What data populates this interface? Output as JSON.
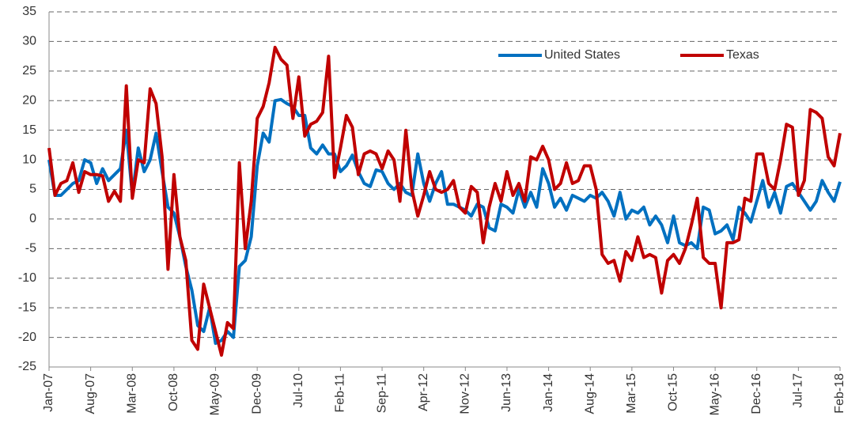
{
  "chart_data": {
    "type": "line",
    "categories": [
      "Jan-07",
      null,
      null,
      null,
      null,
      null,
      null,
      "Aug-07",
      null,
      null,
      null,
      null,
      null,
      null,
      "Mar-08",
      null,
      null,
      null,
      null,
      null,
      null,
      "Oct-08",
      null,
      null,
      null,
      null,
      null,
      null,
      "May-09",
      null,
      null,
      null,
      null,
      null,
      null,
      "Dec-09",
      null,
      null,
      null,
      null,
      null,
      null,
      "Jul-10",
      null,
      null,
      null,
      null,
      null,
      null,
      "Feb-11",
      null,
      null,
      null,
      null,
      null,
      null,
      "Sep-11",
      null,
      null,
      null,
      null,
      null,
      null,
      "Apr-12",
      null,
      null,
      null,
      null,
      null,
      null,
      "Nov-12",
      null,
      null,
      null,
      null,
      null,
      null,
      "Jun-13",
      null,
      null,
      null,
      null,
      null,
      null,
      "Jan-14",
      null,
      null,
      null,
      null,
      null,
      null,
      "Aug-14",
      null,
      null,
      null,
      null,
      null,
      null,
      "Mar-15",
      null,
      null,
      null,
      null,
      null,
      null,
      "Oct-15",
      null,
      null,
      null,
      null,
      null,
      null,
      "May-16",
      null,
      null,
      null,
      null,
      null,
      null,
      "Dec-16",
      null,
      null,
      null,
      null,
      null,
      null,
      "Jul-17",
      null,
      null,
      null,
      null,
      null,
      null,
      "Feb-18"
    ],
    "series": [
      {
        "name": "United States",
        "color": "#0070c0",
        "values": [
          10,
          4,
          4,
          5,
          6,
          6.5,
          10,
          9.5,
          6,
          8.5,
          6.5,
          7.5,
          8.5,
          15,
          4,
          12,
          8,
          10,
          14.5,
          8,
          2,
          1,
          -3,
          -8,
          -12,
          -18,
          -19,
          -15,
          -21,
          -20.5,
          -19,
          -20,
          -8,
          -7,
          -3,
          9,
          14.5,
          13,
          20,
          20.2,
          19.5,
          19,
          17.5,
          17.5,
          12,
          11,
          12.5,
          11,
          11,
          8,
          9,
          10.8,
          8,
          6,
          5.5,
          8.3,
          8,
          6,
          5,
          6,
          4.5,
          4,
          11,
          6,
          3,
          6,
          8,
          2.5,
          2.5,
          2,
          1.5,
          0.5,
          2.5,
          2,
          -1.5,
          -2,
          2.5,
          2,
          1,
          5,
          2,
          4.5,
          2,
          8.5,
          6,
          2,
          3.5,
          1.5,
          4,
          3.5,
          3,
          4,
          3.5,
          4.5,
          3,
          0.5,
          4.5,
          0,
          1.5,
          1,
          2,
          -1,
          0.5,
          -1,
          -4,
          0.5,
          -4,
          -4.5,
          -4,
          -5,
          2,
          1.5,
          -2.5,
          -2,
          -1,
          -3.5,
          2,
          1,
          -0.5,
          3,
          6.5,
          2,
          4.5,
          1,
          5.5,
          6,
          4.5,
          3,
          1.5,
          3,
          6.5,
          4.5,
          3,
          6.3
        ]
      },
      {
        "name": "Texas",
        "color": "#c00000",
        "values": [
          12,
          4,
          6,
          6.5,
          9.5,
          4.5,
          8,
          7.5,
          7.5,
          7.3,
          3,
          4.7,
          3,
          22.5,
          3.5,
          10,
          9.5,
          22,
          19.5,
          10.5,
          -8.5,
          7.5,
          -3,
          -7,
          -20.5,
          -22,
          -11,
          -15,
          -19,
          -23,
          -17.5,
          -18.5,
          9.5,
          -5,
          3,
          17,
          19,
          23,
          29,
          27,
          26,
          17,
          24,
          14,
          16,
          16.5,
          18,
          27.5,
          7,
          12,
          17.5,
          15.5,
          7.5,
          11,
          11.5,
          11,
          8.5,
          11.5,
          10,
          3,
          15,
          5,
          0.5,
          4,
          8,
          5,
          4.5,
          5,
          6.5,
          2,
          1,
          5.5,
          4.5,
          -4,
          2,
          6,
          3,
          8,
          4,
          6,
          3,
          10.5,
          10,
          12.3,
          10,
          5,
          6,
          9.5,
          6,
          6.5,
          9,
          9,
          5,
          -6,
          -7.5,
          -7,
          -10.5,
          -5.5,
          -7,
          -3,
          -6.5,
          -6,
          -6.5,
          -12.5,
          -7,
          -6,
          -7.5,
          -5,
          -1,
          3.5,
          -6.5,
          -7.5,
          -7.5,
          -15,
          -4,
          -4,
          -3.5,
          3.5,
          3,
          11,
          11,
          6,
          5,
          10,
          16,
          15.5,
          4,
          6.5,
          18.5,
          18,
          17,
          10.5,
          9,
          14.5
        ]
      }
    ],
    "ylim": [
      -25,
      35
    ],
    "yticks": [
      -25,
      -20,
      -15,
      -10,
      -5,
      0,
      5,
      10,
      15,
      20,
      25,
      30,
      35
    ],
    "grid": true,
    "legend": "top-right"
  }
}
